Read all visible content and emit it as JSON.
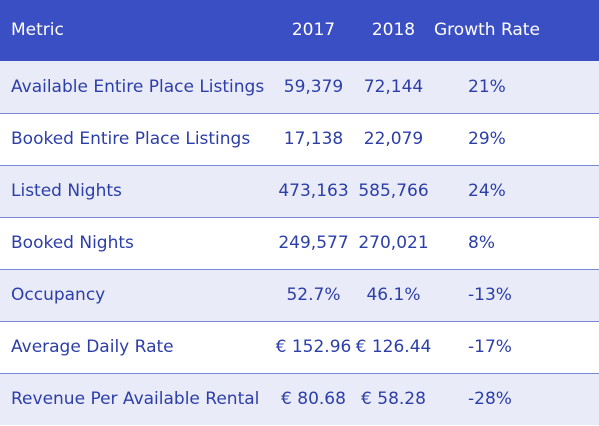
{
  "header": {
    "metric": "Metric",
    "y2017": "2017",
    "y2018": "2018",
    "growth": "Growth Rate"
  },
  "rows": [
    {
      "metric": "Available Entire Place Listings",
      "y2017": "59,379",
      "y2018": "72,144",
      "growth": "21%"
    },
    {
      "metric": "Booked Entire Place Listings",
      "y2017": "17,138",
      "y2018": "22,079",
      "growth": "29%"
    },
    {
      "metric": "Listed Nights",
      "y2017": "473,163",
      "y2018": "585,766",
      "growth": "24%"
    },
    {
      "metric": "Booked Nights",
      "y2017": "249,577",
      "y2018": "270,021",
      "growth": "8%"
    },
    {
      "metric": "Occupancy",
      "y2017": "52.7%",
      "y2018": "46.1%",
      "growth": "-13%"
    },
    {
      "metric": "Average Daily Rate",
      "y2017": "€ 152.96",
      "y2018": "€ 126.44",
      "growth": "-17%"
    },
    {
      "metric": "Revenue Per Available Rental",
      "y2017": "€ 80.68",
      "y2018": "€ 58.28",
      "growth": "-28%"
    }
  ],
  "colors": {
    "header_bg": "#3b4fc4",
    "row_shaded": "#e9ebf8",
    "text": "#2c3ea8"
  }
}
